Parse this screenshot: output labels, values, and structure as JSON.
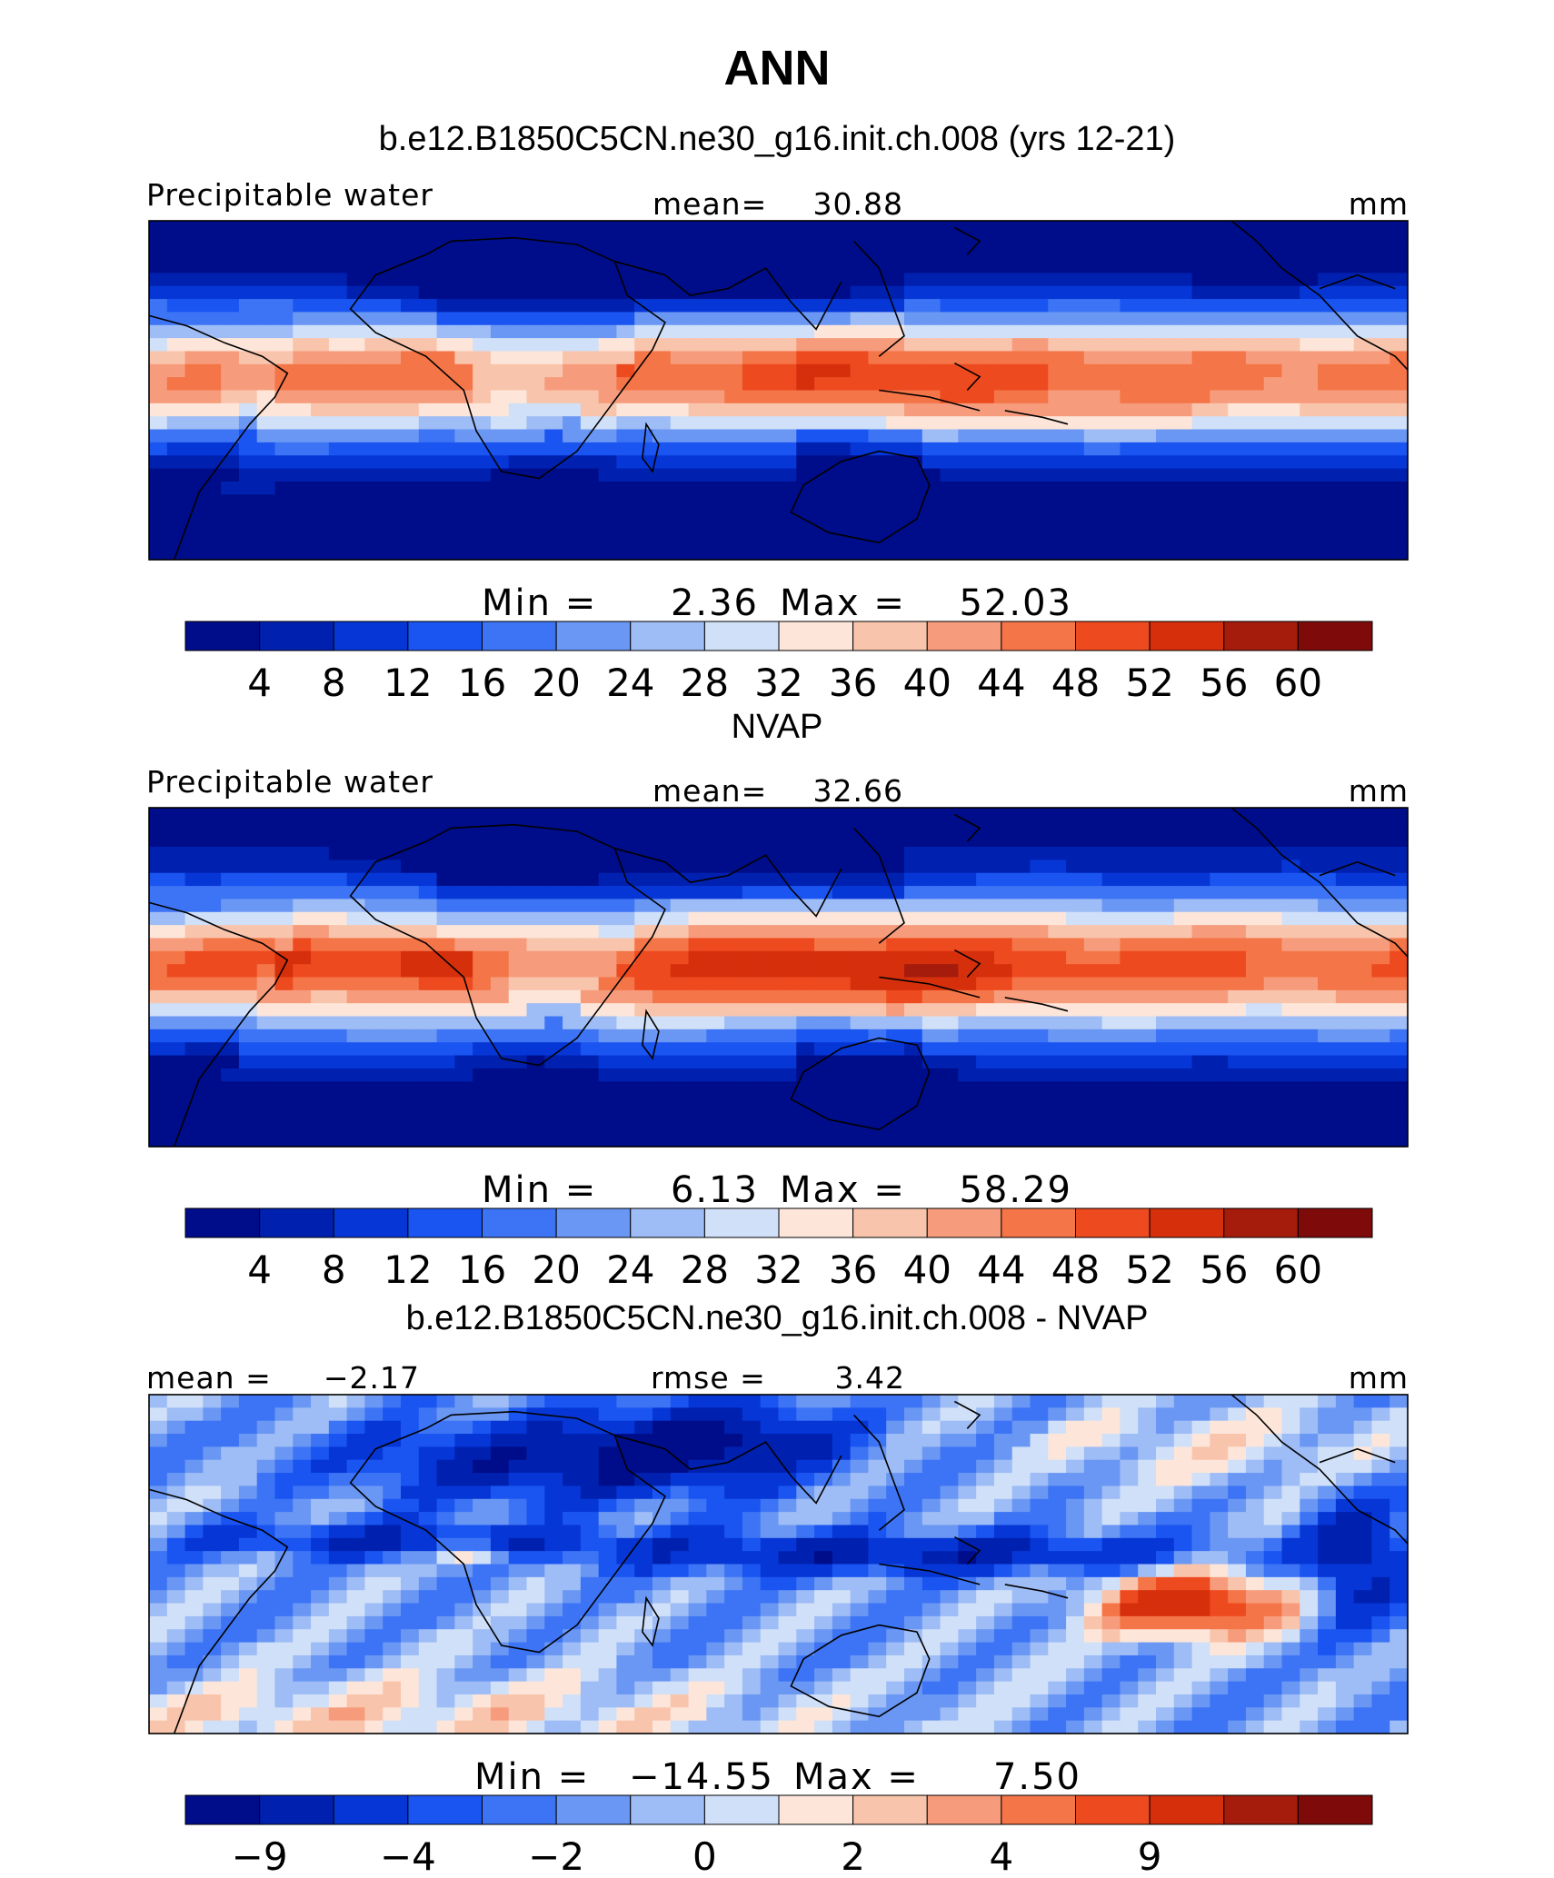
{
  "figure": {
    "season": "ANN",
    "case_title": "b.e12.B1850C5CN.ne30_g16.init.ch.008 (yrs 12-21)",
    "obs_title": "NVAP",
    "diff_title": "b.e12.B1850C5CN.ne30_g16.init.ch.008 - NVAP"
  },
  "colors": {
    "scale": [
      "#000d8a",
      "#0021b0",
      "#0637d6",
      "#1a55f2",
      "#3d74f5",
      "#6a97f3",
      "#9ebcf5",
      "#cfe0f8",
      "#fde6d9",
      "#f9c4ac",
      "#f69c7c",
      "#f47548",
      "#ee4a1f",
      "#d62f0c",
      "#a51b0c",
      "#7e0a0a"
    ],
    "coastline": "#000000"
  },
  "chart_data": [
    {
      "type": "heatmap",
      "variable_label": "Precipitable water",
      "mean_label": "mean=",
      "mean": "30.88",
      "units": "mm",
      "min_label": "Min =",
      "min": "2.36",
      "max_label": "Max =",
      "max": "52.03",
      "colorbar_ticks": [
        "4",
        "8",
        "12",
        "16",
        "20",
        "24",
        "28",
        "32",
        "36",
        "40",
        "44",
        "48",
        "52",
        "56",
        "60"
      ],
      "field": "model"
    },
    {
      "type": "heatmap",
      "variable_label": "Precipitable water",
      "mean_label": "mean=",
      "mean": "32.66",
      "units": "mm",
      "min_label": "Min =",
      "min": "6.13",
      "max_label": "Max =",
      "max": "58.29",
      "colorbar_ticks": [
        "4",
        "8",
        "12",
        "16",
        "20",
        "24",
        "28",
        "32",
        "36",
        "40",
        "44",
        "48",
        "52",
        "56",
        "60"
      ],
      "field": "obs"
    },
    {
      "type": "heatmap",
      "mean_label": "mean =",
      "mean": "−2.17",
      "rmse_label": "rmse =",
      "rmse": "3.42",
      "units": "mm",
      "min_label": "Min =",
      "min": "−14.55",
      "max_label": "Max =",
      "max": "7.50",
      "colorbar_ticks": [
        "−9",
        "",
        "−4",
        "",
        "−2",
        "",
        "0",
        "",
        "2",
        "",
        "4",
        "",
        "9"
      ],
      "field": "diff"
    }
  ]
}
